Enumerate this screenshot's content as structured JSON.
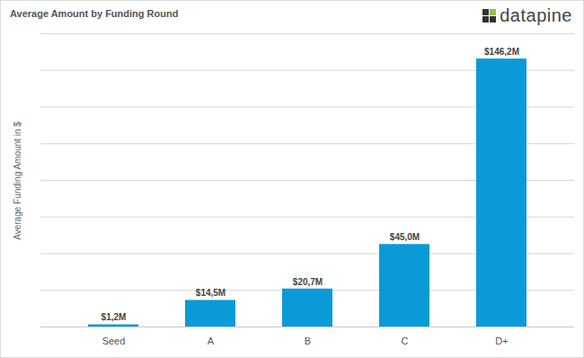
{
  "chart_data": {
    "type": "bar",
    "title": "Average Amount by Funding Round",
    "logo": "datapine",
    "y_label": "Average Funding Amount in $",
    "categories": [
      "Seed",
      "A",
      "B",
      "C",
      "D+"
    ],
    "values": [
      1200000,
      14500000,
      20700000,
      45000000,
      146200000
    ],
    "value_labels": [
      "$1,2M",
      "$14,5M",
      "$20,7M",
      "$45,0M",
      "$146,2M"
    ],
    "color": "#0a9ad8",
    "ylim": [
      0,
      160000000
    ],
    "yticks": [
      0,
      20000000,
      40000000,
      60000000,
      80000000,
      100000000,
      120000000,
      140000000,
      160000000
    ],
    "grid": true,
    "data_labels": true,
    "tick_labels": "x"
  }
}
